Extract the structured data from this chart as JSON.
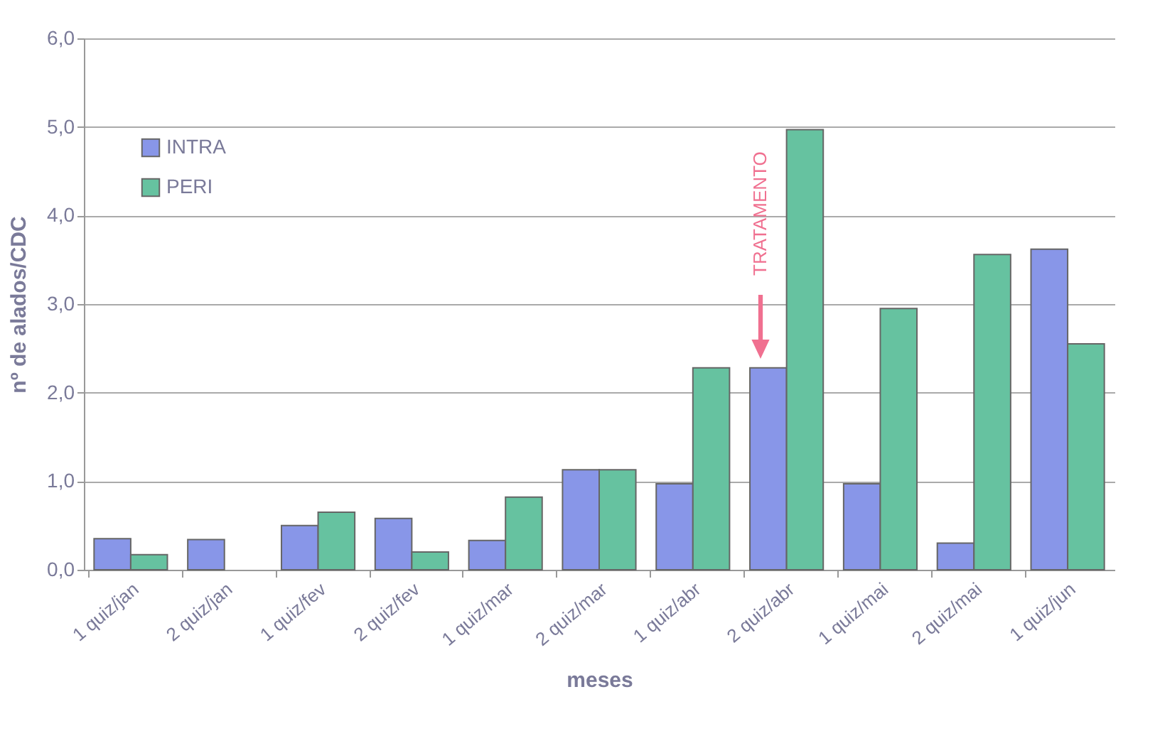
{
  "chart_data": {
    "type": "bar",
    "xlabel": "meses",
    "ylabel": "nº de alados/CDC",
    "categories": [
      "1 quiz/jan",
      "2 quiz/jan",
      "1 quiz/fev",
      "2 quiz/fev",
      "1 quiz/mar",
      "2 quiz/mar",
      "1 quiz/abr",
      "2 quiz/abr",
      "1 quiz/mai",
      "2 quiz/mai",
      "1 quiz/jun"
    ],
    "series": [
      {
        "name": "INTRA",
        "color": "#8896e8",
        "values": [
          0.35,
          0.34,
          0.5,
          0.58,
          0.33,
          1.13,
          0.97,
          2.28,
          0.97,
          0.3,
          3.62
        ]
      },
      {
        "name": "PERI",
        "color": "#66c2a0",
        "values": [
          0.17,
          null,
          0.65,
          0.2,
          0.82,
          1.13,
          2.28,
          4.97,
          2.95,
          3.56,
          2.55
        ]
      }
    ],
    "ylim": [
      0,
      6
    ],
    "yticks": [
      {
        "value": 0,
        "label": "0,0"
      },
      {
        "value": 1,
        "label": "1,0"
      },
      {
        "value": 2,
        "label": "2,0"
      },
      {
        "value": 3,
        "label": "3,0"
      },
      {
        "value": 4,
        "label": "4,0"
      },
      {
        "value": 5,
        "label": "5,0"
      },
      {
        "value": 6,
        "label": "6,0"
      }
    ],
    "grid": "y",
    "legend": "top left",
    "annotations": [
      "TRATAMENTO"
    ]
  }
}
